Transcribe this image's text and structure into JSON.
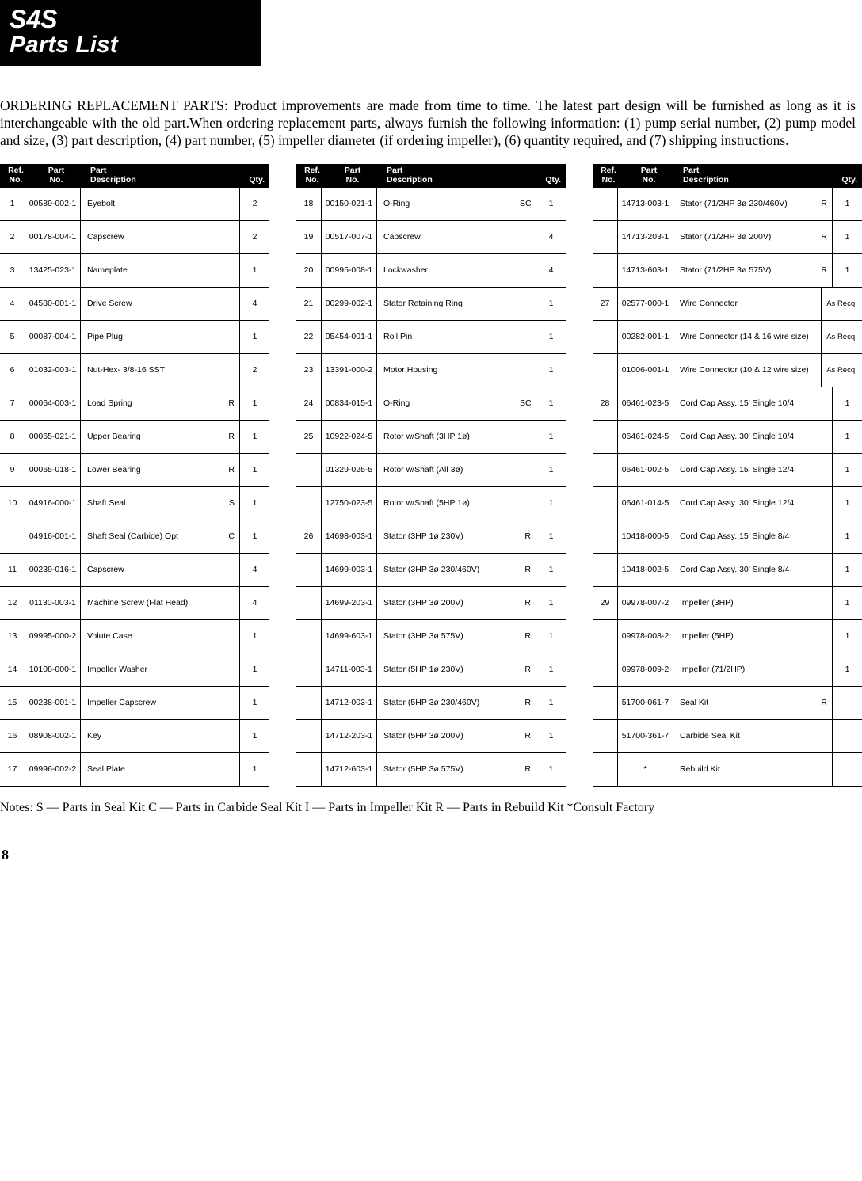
{
  "header": {
    "model": "S4S",
    "title": "Parts List"
  },
  "intro": "ORDERING REPLACEMENT PARTS: Product improvements are made from time to time. The latest part design will be furnished as long as it is interchangeable with the old part.When ordering replacement parts, always furnish the following information: (1) pump serial number, (2) pump model and size, (3) part description, (4) part number, (5) impeller diameter (if ordering impeller), (6) quantity required, and (7) shipping instructions.",
  "column_headers": {
    "ref": "Ref.\nNo.",
    "part": "Part\nNo.",
    "desc": "Part\nDescription",
    "qty": "Qty."
  },
  "columns": [
    [
      {
        "ref": "1",
        "part": "00589-002-1",
        "desc": "Eyebolt",
        "note": "",
        "qty": "2"
      },
      {
        "ref": "2",
        "part": "00178-004-1",
        "desc": "Capscrew",
        "note": "",
        "qty": "2"
      },
      {
        "ref": "3",
        "part": "13425-023-1",
        "desc": "Nameplate",
        "note": "",
        "qty": "1"
      },
      {
        "ref": "4",
        "part": "04580-001-1",
        "desc": "Drive Screw",
        "note": "",
        "qty": "4"
      },
      {
        "ref": "5",
        "part": "00087-004-1",
        "desc": "Pipe Plug",
        "note": "",
        "qty": "1"
      },
      {
        "ref": "6",
        "part": "01032-003-1",
        "desc": "Nut-Hex- 3/8-16 SST",
        "note": "",
        "qty": "2"
      },
      {
        "ref": "7",
        "part": "00064-003-1",
        "desc": "Load Spring",
        "note": "R",
        "qty": "1"
      },
      {
        "ref": "8",
        "part": "00065-021-1",
        "desc": "Upper Bearing",
        "note": "R",
        "qty": "1"
      },
      {
        "ref": "9",
        "part": "00065-018-1",
        "desc": "Lower Bearing",
        "note": "R",
        "qty": "1"
      },
      {
        "ref": "10",
        "part": "04916-000-1",
        "desc": "Shaft Seal",
        "note": "S",
        "qty": "1"
      },
      {
        "ref": "",
        "part": "04916-001-1",
        "desc": "Shaft Seal (Carbide) Opt",
        "note": "C",
        "qty": "1"
      },
      {
        "ref": "11",
        "part": "00239-016-1",
        "desc": "Capscrew",
        "note": "",
        "qty": "4"
      },
      {
        "ref": "12",
        "part": "01130-003-1",
        "desc": "Machine Screw (Flat Head)",
        "note": "",
        "qty": "4"
      },
      {
        "ref": "13",
        "part": "09995-000-2",
        "desc": "Volute Case",
        "note": "",
        "qty": "1"
      },
      {
        "ref": "14",
        "part": "10108-000-1",
        "desc": "Impeller Washer",
        "note": "",
        "qty": "1"
      },
      {
        "ref": "15",
        "part": "00238-001-1",
        "desc": "Impeller Capscrew",
        "note": "",
        "qty": "1"
      },
      {
        "ref": "16",
        "part": "08908-002-1",
        "desc": "Key",
        "note": "",
        "qty": "1"
      },
      {
        "ref": "17",
        "part": "09996-002-2",
        "desc": "Seal Plate",
        "note": "",
        "qty": "1"
      }
    ],
    [
      {
        "ref": "18",
        "part": "00150-021-1",
        "desc": "O-Ring",
        "note": "SC",
        "qty": "1"
      },
      {
        "ref": "19",
        "part": "00517-007-1",
        "desc": "Capscrew",
        "note": "",
        "qty": "4"
      },
      {
        "ref": "20",
        "part": "00995-008-1",
        "desc": "Lockwasher",
        "note": "",
        "qty": "4"
      },
      {
        "ref": "21",
        "part": "00299-002-1",
        "desc": "Stator Retaining Ring",
        "note": "",
        "qty": "1"
      },
      {
        "ref": "22",
        "part": "05454-001-1",
        "desc": "Roll Pin",
        "note": "",
        "qty": "1"
      },
      {
        "ref": "23",
        "part": "13391-000-2",
        "desc": "Motor Housing",
        "note": "",
        "qty": "1"
      },
      {
        "ref": "24",
        "part": "00834-015-1",
        "desc": "O-Ring",
        "note": "SC",
        "qty": "1"
      },
      {
        "ref": "25",
        "part": "10922-024-5",
        "desc": "Rotor w/Shaft (3HP 1ø)",
        "note": "",
        "qty": "1"
      },
      {
        "ref": "",
        "part": "01329-025-5",
        "desc": "Rotor w/Shaft (All 3ø)",
        "note": "",
        "qty": "1"
      },
      {
        "ref": "",
        "part": "12750-023-5",
        "desc": "Rotor w/Shaft (5HP 1ø)",
        "note": "",
        "qty": "1"
      },
      {
        "ref": "26",
        "part": "14698-003-1",
        "desc": "Stator (3HP 1ø 230V)",
        "note": "R",
        "qty": "1"
      },
      {
        "ref": "",
        "part": "14699-003-1",
        "desc": "Stator (3HP 3ø 230/460V)",
        "note": "R",
        "qty": "1"
      },
      {
        "ref": "",
        "part": "14699-203-1",
        "desc": "Stator (3HP 3ø 200V)",
        "note": "R",
        "qty": "1"
      },
      {
        "ref": "",
        "part": "14699-603-1",
        "desc": "Stator (3HP 3ø 575V)",
        "note": "R",
        "qty": "1"
      },
      {
        "ref": "",
        "part": "14711-003-1",
        "desc": "Stator (5HP 1ø 230V)",
        "note": "R",
        "qty": "1"
      },
      {
        "ref": "",
        "part": "14712-003-1",
        "desc": "Stator (5HP 3ø 230/460V)",
        "note": "R",
        "qty": "1"
      },
      {
        "ref": "",
        "part": "14712-203-1",
        "desc": "Stator (5HP 3ø 200V)",
        "note": "R",
        "qty": "1"
      },
      {
        "ref": "",
        "part": "14712-603-1",
        "desc": "Stator (5HP 3ø 575V)",
        "note": "R",
        "qty": "1"
      }
    ],
    [
      {
        "ref": "",
        "part": "14713-003-1",
        "desc": "Stator (71/2HP 3ø 230/460V)",
        "note": "R",
        "qty": "1"
      },
      {
        "ref": "",
        "part": "14713-203-1",
        "desc": "Stator (71/2HP 3ø 200V)",
        "note": "R",
        "qty": "1"
      },
      {
        "ref": "",
        "part": "14713-603-1",
        "desc": "Stator (71/2HP 3ø 575V)",
        "note": "R",
        "qty": "1"
      },
      {
        "ref": "27",
        "part": "02577-000-1",
        "desc": "Wire Connector",
        "note": "",
        "qty": "As Recq."
      },
      {
        "ref": "",
        "part": "00282-001-1",
        "desc": "Wire Connector (14 & 16 wire size)",
        "note": "",
        "qty": "As Recq."
      },
      {
        "ref": "",
        "part": "01006-001-1",
        "desc": "Wire Connector (10 & 12 wire size)",
        "note": "",
        "qty": "As Recq."
      },
      {
        "ref": "28",
        "part": "06461-023-5",
        "desc": "Cord Cap Assy. 15' Single 10/4",
        "note": "",
        "qty": "1"
      },
      {
        "ref": "",
        "part": "06461-024-5",
        "desc": "Cord Cap Assy. 30' Single 10/4",
        "note": "",
        "qty": "1"
      },
      {
        "ref": "",
        "part": "06461-002-5",
        "desc": "Cord Cap Assy. 15' Single 12/4",
        "note": "",
        "qty": "1"
      },
      {
        "ref": "",
        "part": "06461-014-5",
        "desc": "Cord Cap Assy. 30' Single 12/4",
        "note": "",
        "qty": "1"
      },
      {
        "ref": "",
        "part": "10418-000-5",
        "desc": "Cord Cap Assy. 15' Single 8/4",
        "note": "",
        "qty": "1"
      },
      {
        "ref": "",
        "part": "10418-002-5",
        "desc": "Cord Cap Assy. 30' Single 8/4",
        "note": "",
        "qty": "1"
      },
      {
        "ref": "29",
        "part": "09978-007-2",
        "desc": "Impeller (3HP)",
        "note": "",
        "qty": "1"
      },
      {
        "ref": "",
        "part": "09978-008-2",
        "desc": "Impeller (5HP)",
        "note": "",
        "qty": "1"
      },
      {
        "ref": "",
        "part": "09978-009-2",
        "desc": "Impeller (71/2HP)",
        "note": "",
        "qty": "1"
      },
      {
        "ref": "",
        "part": "51700-061-7",
        "desc": "Seal Kit",
        "note": "R",
        "qty": ""
      },
      {
        "ref": "",
        "part": "51700-361-7",
        "desc": "Carbide Seal Kit",
        "note": "",
        "qty": ""
      },
      {
        "ref": "",
        "part": "*",
        "desc": "Rebuild Kit",
        "note": "",
        "qty": ""
      }
    ]
  ],
  "notes": "Notes:  S — Parts in Seal Kit  C — Parts in Carbide Seal Kit  I — Parts in Impeller Kit  R — Parts in Rebuild Kit  *Consult Factory",
  "page_number": "8"
}
